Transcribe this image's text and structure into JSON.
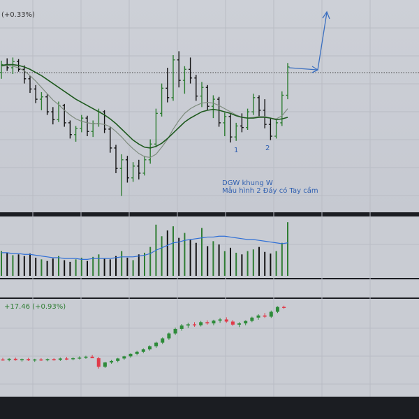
{
  "header": {
    "change_label": "(+0.33%)"
  },
  "annotations": {
    "bottom_1": "1",
    "bottom_2": "2",
    "title_line1": "DGW khung W",
    "title_line2": "Mẫu hình 2 Đáy có Tay cầm"
  },
  "index_panel": {
    "change_label": "+17.46 (+0.93%)"
  },
  "colors": {
    "up": "#2e7d32",
    "down": "#111111",
    "ma_fast": "#7f8c7f",
    "ma_slow": "#1f5a1f",
    "volume_ma": "#2f6fd6",
    "arrow": "#3b6fc0",
    "index_up": "#2e8b3a",
    "index_down": "#e03b4a"
  },
  "chart_data": [
    {
      "type": "candlestick",
      "description_series": [
        "price",
        "ma_fast",
        "ma_slow"
      ],
      "ohlc": [
        [
          40.0,
          41.5,
          39.2,
          41.0
        ],
        [
          41.0,
          41.8,
          40.2,
          40.6
        ],
        [
          40.6,
          41.9,
          39.8,
          41.4
        ],
        [
          41.4,
          41.7,
          40.1,
          40.4
        ],
        [
          40.4,
          40.9,
          38.6,
          39.2
        ],
        [
          39.2,
          39.6,
          37.4,
          37.9
        ],
        [
          37.9,
          38.4,
          36.1,
          36.6
        ],
        [
          36.6,
          37.5,
          35.2,
          36.9
        ],
        [
          36.9,
          37.2,
          34.6,
          35.0
        ],
        [
          35.0,
          35.6,
          33.4,
          34.0
        ],
        [
          34.0,
          36.3,
          33.7,
          35.8
        ],
        [
          35.8,
          36.0,
          33.1,
          33.6
        ],
        [
          33.6,
          33.9,
          31.6,
          32.1
        ],
        [
          32.1,
          33.2,
          31.2,
          32.9
        ],
        [
          32.9,
          34.6,
          32.4,
          34.2
        ],
        [
          34.2,
          34.5,
          31.9,
          32.5
        ],
        [
          32.5,
          33.9,
          31.8,
          33.5
        ],
        [
          33.5,
          35.4,
          33.1,
          35.0
        ],
        [
          35.0,
          35.2,
          32.3,
          32.8
        ],
        [
          32.8,
          33.1,
          29.8,
          30.4
        ],
        [
          30.4,
          30.8,
          27.2,
          27.8
        ],
        [
          27.8,
          29.6,
          24.3,
          28.9
        ],
        [
          28.9,
          29.4,
          26.0,
          26.6
        ],
        [
          26.6,
          28.6,
          26.1,
          28.1
        ],
        [
          28.1,
          28.9,
          26.4,
          27.2
        ],
        [
          27.2,
          29.4,
          26.9,
          28.9
        ],
        [
          28.9,
          31.5,
          28.4,
          30.9
        ],
        [
          30.9,
          35.4,
          30.5,
          34.8
        ],
        [
          34.8,
          38.6,
          34.4,
          38.0
        ],
        [
          38.0,
          40.6,
          36.2,
          36.8
        ],
        [
          36.8,
          42.2,
          36.4,
          41.6
        ],
        [
          41.6,
          42.7,
          38.1,
          39.0
        ],
        [
          39.0,
          40.8,
          37.3,
          40.4
        ],
        [
          40.4,
          41.9,
          38.6,
          39.3
        ],
        [
          39.3,
          39.7,
          36.4,
          37.0
        ],
        [
          37.0,
          38.8,
          35.6,
          38.1
        ],
        [
          38.1,
          38.4,
          35.2,
          35.7
        ],
        [
          35.7,
          37.1,
          34.2,
          36.6
        ],
        [
          36.6,
          36.9,
          33.1,
          33.6
        ],
        [
          33.6,
          34.9,
          31.9,
          34.4
        ],
        [
          34.4,
          34.7,
          31.1,
          31.8
        ],
        [
          31.8,
          33.6,
          31.3,
          33.2
        ],
        [
          33.2,
          34.8,
          32.4,
          33.0
        ],
        [
          33.0,
          35.4,
          32.7,
          35.0
        ],
        [
          35.0,
          37.3,
          34.6,
          36.8
        ],
        [
          36.8,
          37.1,
          34.3,
          35.2
        ],
        [
          35.2,
          36.6,
          32.9,
          33.4
        ],
        [
          33.4,
          34.2,
          31.4,
          31.9
        ],
        [
          31.9,
          34.1,
          31.6,
          33.6
        ],
        [
          33.6,
          37.6,
          33.2,
          37.1
        ],
        [
          37.1,
          41.2,
          36.6,
          40.7
        ]
      ],
      "ma_fast": [
        40.8,
        40.9,
        40.8,
        40.6,
        40.2,
        39.6,
        38.9,
        38.1,
        37.3,
        36.5,
        35.9,
        35.2,
        34.6,
        34.1,
        33.8,
        33.6,
        33.5,
        33.5,
        33.4,
        33.1,
        32.5,
        31.8,
        31.0,
        30.3,
        29.7,
        29.3,
        29.2,
        29.6,
        30.5,
        31.5,
        32.8,
        33.9,
        34.8,
        35.4,
        35.8,
        36.1,
        36.2,
        36.1,
        35.8,
        35.4,
        35.0,
        34.6,
        34.3,
        34.2,
        34.3,
        34.4,
        34.4,
        34.2,
        34.1,
        34.5,
        35.4
      ],
      "ma_slow": [
        40.9,
        41.0,
        41.0,
        40.9,
        40.7,
        40.4,
        40.0,
        39.6,
        39.1,
        38.6,
        38.1,
        37.6,
        37.1,
        36.6,
        36.2,
        35.8,
        35.4,
        35.0,
        34.6,
        34.1,
        33.5,
        32.8,
        32.1,
        31.4,
        30.9,
        30.5,
        30.4,
        30.6,
        31.0,
        31.6,
        32.3,
        33.0,
        33.7,
        34.2,
        34.6,
        35.0,
        35.2,
        35.3,
        35.2,
        35.0,
        34.8,
        34.5,
        34.3,
        34.2,
        34.2,
        34.3,
        34.3,
        34.2,
        34.0,
        34.1,
        34.3
      ]
    },
    {
      "type": "bar",
      "series": [
        {
          "values": [
            30,
            28,
            25,
            26,
            24,
            27,
            22,
            20,
            18,
            21,
            24,
            19,
            17,
            20,
            22,
            18,
            23,
            26,
            21,
            20,
            24,
            30,
            22,
            19,
            26,
            28,
            35,
            62,
            48,
            55,
            60,
            46,
            52,
            44,
            40,
            58,
            36,
            42,
            38,
            30,
            34,
            28,
            26,
            30,
            32,
            35,
            29,
            27,
            30,
            40,
            65
          ]
        },
        {
          "values": [
            28,
            28,
            27,
            27,
            26,
            26,
            25,
            24,
            23,
            22,
            22,
            21,
            21,
            21,
            20,
            20,
            21,
            21,
            21,
            21,
            22,
            23,
            23,
            23,
            24,
            25,
            27,
            31,
            34,
            37,
            40,
            41,
            43,
            44,
            45,
            46,
            47,
            47,
            48,
            48,
            47,
            46,
            45,
            44,
            44,
            43,
            42,
            41,
            40,
            39,
            40
          ]
        }
      ]
    },
    {
      "type": "candlestick",
      "ohlc": [
        [
          1400,
          1405,
          1396,
          1399
        ],
        [
          1399,
          1404,
          1394,
          1402
        ],
        [
          1402,
          1406,
          1396,
          1398
        ],
        [
          1398,
          1403,
          1393,
          1401
        ],
        [
          1401,
          1405,
          1395,
          1397
        ],
        [
          1397,
          1402,
          1392,
          1400
        ],
        [
          1400,
          1404,
          1395,
          1398
        ],
        [
          1398,
          1403,
          1394,
          1401
        ],
        [
          1401,
          1404,
          1396,
          1399
        ],
        [
          1399,
          1406,
          1395,
          1403
        ],
        [
          1403,
          1408,
          1398,
          1401
        ],
        [
          1401,
          1407,
          1397,
          1404
        ],
        [
          1404,
          1410,
          1400,
          1406
        ],
        [
          1406,
          1412,
          1402,
          1409
        ],
        [
          1409,
          1415,
          1404,
          1404
        ],
        [
          1404,
          1408,
          1370,
          1376
        ],
        [
          1376,
          1392,
          1372,
          1390
        ],
        [
          1390,
          1398,
          1386,
          1395
        ],
        [
          1395,
          1405,
          1391,
          1403
        ],
        [
          1403,
          1412,
          1399,
          1410
        ],
        [
          1410,
          1420,
          1406,
          1418
        ],
        [
          1418,
          1428,
          1414,
          1425
        ],
        [
          1425,
          1436,
          1421,
          1433
        ],
        [
          1433,
          1446,
          1429,
          1443
        ],
        [
          1443,
          1458,
          1438,
          1455
        ],
        [
          1455,
          1472,
          1450,
          1469
        ],
        [
          1469,
          1488,
          1464,
          1485
        ],
        [
          1485,
          1504,
          1480,
          1500
        ],
        [
          1500,
          1516,
          1494,
          1511
        ],
        [
          1511,
          1520,
          1503,
          1515
        ],
        [
          1515,
          1522,
          1507,
          1512
        ],
        [
          1512,
          1526,
          1508,
          1522
        ],
        [
          1522,
          1528,
          1514,
          1518
        ],
        [
          1518,
          1530,
          1512,
          1527
        ],
        [
          1527,
          1536,
          1520,
          1531
        ],
        [
          1531,
          1538,
          1520,
          1524
        ],
        [
          1524,
          1529,
          1510,
          1514
        ],
        [
          1514,
          1522,
          1506,
          1518
        ],
        [
          1518,
          1528,
          1512,
          1526
        ],
        [
          1526,
          1540,
          1522,
          1537
        ],
        [
          1537,
          1548,
          1530,
          1544
        ],
        [
          1544,
          1552,
          1536,
          1540
        ],
        [
          1540,
          1560,
          1536,
          1556
        ],
        [
          1556,
          1574,
          1552,
          1572
        ],
        [
          1572,
          1576,
          1566,
          1570
        ]
      ]
    }
  ]
}
